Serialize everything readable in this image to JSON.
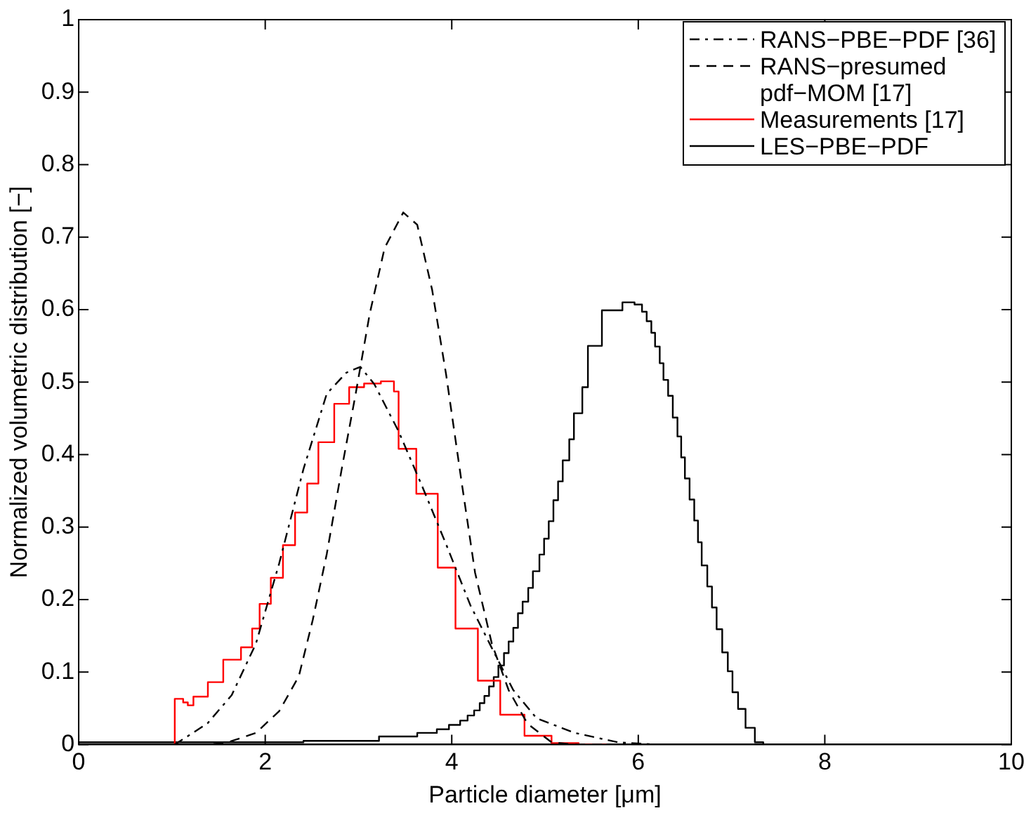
{
  "chart_data": {
    "type": "line",
    "xlabel": "Particle diameter [μm]",
    "ylabel": "Normalized volumetric distribution [−]",
    "xlim": [
      0,
      10
    ],
    "xticks": [
      0,
      2,
      4,
      6,
      8,
      10
    ],
    "ylim": [
      0,
      1
    ],
    "yticks": [
      0,
      0.1,
      0.2,
      0.3,
      0.4,
      0.5,
      0.6,
      0.7,
      0.8,
      0.9,
      1
    ],
    "grid": false,
    "legend": "top right",
    "marker": "none",
    "series": [
      {
        "name": "RANS−PBE−PDF [36]",
        "type": "line",
        "line_style": "dashdot",
        "color": "#000000",
        "x": [
          0,
          1.03,
          1.38,
          1.64,
          1.9,
          2.15,
          2.41,
          2.66,
          2.87,
          3.02,
          3.17,
          3.43,
          3.69,
          3.94,
          4.2,
          4.43,
          4.66,
          4.91,
          5.32,
          5.78,
          6.2,
          10
        ],
        "values": [
          0,
          0,
          0.029,
          0.068,
          0.139,
          0.25,
          0.38,
          0.484,
          0.513,
          0.521,
          0.497,
          0.432,
          0.354,
          0.276,
          0.192,
          0.133,
          0.075,
          0.036,
          0.016,
          0.003,
          0,
          0
        ]
      },
      {
        "name": "RANS−presumed pdf−MOM [17]",
        "type": "line",
        "line_style": "dashed",
        "color": "#000000",
        "x": [
          0,
          1.4,
          1.6,
          1.9,
          2.15,
          2.36,
          2.51,
          2.66,
          2.82,
          2.97,
          3.12,
          3.28,
          3.48,
          3.63,
          3.79,
          3.94,
          4.1,
          4.25,
          4.43,
          4.61,
          4.81,
          5.07,
          5.3,
          10
        ],
        "values": [
          0,
          0,
          0.003,
          0.016,
          0.046,
          0.094,
          0.172,
          0.263,
          0.38,
          0.484,
          0.594,
          0.685,
          0.734,
          0.717,
          0.627,
          0.51,
          0.367,
          0.237,
          0.139,
          0.075,
          0.029,
          0.003,
          0,
          0
        ]
      },
      {
        "name": "Measurements [17]",
        "type": "step",
        "line_style": "solid",
        "color": "#ff0000",
        "x": [
          1.03,
          1.03,
          1.12,
          1.17,
          1.23,
          1.385,
          1.55,
          1.74,
          1.86,
          1.94,
          2.06,
          2.19,
          2.32,
          2.45,
          2.57,
          2.74,
          2.9,
          3.06,
          3.24,
          3.38,
          3.43,
          3.62,
          3.85,
          4.04,
          4.28,
          4.52,
          4.78,
          5.07,
          5.36,
          5.66
        ],
        "values": [
          0,
          0.06,
          0.063,
          0.058,
          0.054,
          0.066,
          0.086,
          0.117,
          0.134,
          0.16,
          0.194,
          0.23,
          0.275,
          0.32,
          0.36,
          0.417,
          0.47,
          0.493,
          0.498,
          0.501,
          0.487,
          0.408,
          0.346,
          0.244,
          0.16,
          0.088,
          0.041,
          0.012,
          0.002,
          0
        ]
      },
      {
        "name": "LES−PBE−PDF",
        "type": "step",
        "line_style": "solid",
        "color": "#000000",
        "x": [
          0,
          2.41,
          3.22,
          3.63,
          3.84,
          3.97,
          4.09,
          4.17,
          4.24,
          4.3,
          4.35,
          4.4,
          4.45,
          4.5,
          4.56,
          4.61,
          4.66,
          4.71,
          4.76,
          4.82,
          4.87,
          4.94,
          4.99,
          5.04,
          5.09,
          5.14,
          5.19,
          5.26,
          5.31,
          5.4,
          5.46,
          5.61,
          5.83,
          5.96,
          6.04,
          6.09,
          6.14,
          6.18,
          6.23,
          6.27,
          6.32,
          6.37,
          6.42,
          6.46,
          6.5,
          6.55,
          6.6,
          6.64,
          6.68,
          6.74,
          6.79,
          6.84,
          6.9,
          6.96,
          7.01,
          7.07,
          7.15,
          7.25,
          7.34,
          7.57,
          10
        ],
        "values": [
          0,
          0.003,
          0.005,
          0.011,
          0.016,
          0.021,
          0.027,
          0.033,
          0.04,
          0.047,
          0.057,
          0.067,
          0.08,
          0.093,
          0.109,
          0.126,
          0.142,
          0.161,
          0.181,
          0.197,
          0.216,
          0.239,
          0.262,
          0.284,
          0.308,
          0.337,
          0.363,
          0.392,
          0.421,
          0.457,
          0.493,
          0.55,
          0.599,
          0.61,
          0.607,
          0.597,
          0.584,
          0.568,
          0.549,
          0.526,
          0.503,
          0.481,
          0.451,
          0.425,
          0.396,
          0.367,
          0.338,
          0.309,
          0.279,
          0.247,
          0.218,
          0.189,
          0.159,
          0.127,
          0.101,
          0.072,
          0.049,
          0.023,
          0.003,
          0,
          0
        ]
      }
    ]
  }
}
